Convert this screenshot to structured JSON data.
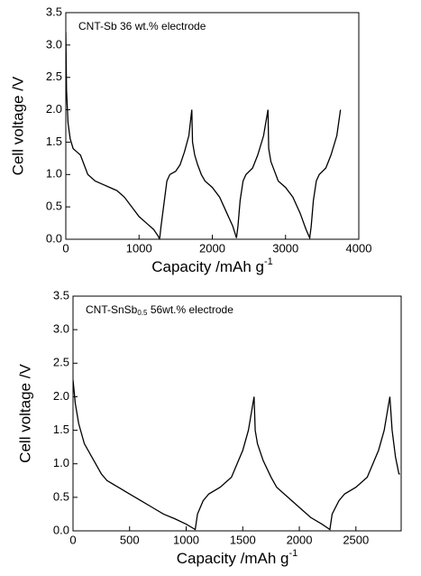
{
  "chart_data": [
    {
      "type": "line",
      "annotation": "CNT-Sb 36 wt.% electrode",
      "xlabel": [
        "Capacity /mAh g",
        "-1"
      ],
      "ylabel": "Cell voltage /V",
      "xlim": [
        0,
        4000
      ],
      "xticks": [
        0,
        1000,
        2000,
        3000,
        4000
      ],
      "ylim": [
        0,
        3.5
      ],
      "yticks": [
        {
          "value": 0,
          "label": "0.0"
        },
        0.5,
        {
          "value": 1,
          "label": "1.0"
        },
        1.5,
        {
          "value": 2,
          "label": "2.0"
        },
        2.5,
        {
          "value": 3,
          "label": "3.0"
        },
        3.5
      ],
      "color": "#000000",
      "x": [
        0,
        10,
        30,
        60,
        100,
        150,
        200,
        250,
        300,
        400,
        500,
        600,
        700,
        800,
        900,
        1000,
        1100,
        1200,
        1260,
        1280,
        1300,
        1340,
        1380,
        1420,
        1500,
        1560,
        1620,
        1680,
        1720,
        1730,
        1760,
        1800,
        1850,
        1900,
        2000,
        2100,
        2200,
        2280,
        2330,
        2350,
        2380,
        2420,
        2460,
        2550,
        2620,
        2700,
        2760,
        2770,
        2800,
        2850,
        2900,
        3000,
        3100,
        3200,
        3280,
        3330,
        3350,
        3380,
        3420,
        3460,
        3550,
        3620,
        3700,
        3750
      ],
      "values": [
        3.2,
        2.3,
        1.8,
        1.55,
        1.4,
        1.35,
        1.3,
        1.15,
        1.0,
        0.9,
        0.85,
        0.8,
        0.75,
        0.65,
        0.5,
        0.35,
        0.25,
        0.15,
        0.05,
        0.0,
        0.2,
        0.55,
        0.9,
        1.0,
        1.05,
        1.15,
        1.35,
        1.6,
        2.0,
        1.5,
        1.3,
        1.15,
        1.0,
        0.9,
        0.8,
        0.65,
        0.4,
        0.2,
        0.02,
        0.2,
        0.6,
        0.9,
        1.0,
        1.1,
        1.3,
        1.6,
        2.0,
        1.4,
        1.2,
        1.05,
        0.9,
        0.8,
        0.65,
        0.4,
        0.15,
        0.02,
        0.2,
        0.6,
        0.9,
        1.0,
        1.1,
        1.3,
        1.6,
        2.0
      ]
    },
    {
      "type": "line",
      "annotation": [
        "CNT-SnSb",
        "0.5",
        " 56wt.% electrode"
      ],
      "xlabel": [
        "Capacity /mAh g",
        "-1"
      ],
      "ylabel": "Cell voltage /V",
      "xlim": [
        0,
        2900
      ],
      "xticks": [
        0,
        500,
        1000,
        1500,
        2000,
        2500
      ],
      "ylim": [
        0,
        3.5
      ],
      "yticks": [
        {
          "value": 0,
          "label": "0.0"
        },
        0.5,
        {
          "value": 1,
          "label": "1.0"
        },
        1.5,
        {
          "value": 2,
          "label": "2.0"
        },
        2.5,
        {
          "value": 3,
          "label": "3.0"
        },
        3.5
      ],
      "color": "#000000",
      "x": [
        0,
        20,
        50,
        100,
        200,
        250,
        300,
        400,
        500,
        600,
        700,
        800,
        900,
        1000,
        1080,
        1100,
        1150,
        1200,
        1300,
        1400,
        1450,
        1500,
        1550,
        1600,
        1610,
        1630,
        1680,
        1750,
        1800,
        1900,
        2000,
        2100,
        2200,
        2270,
        2290,
        2350,
        2400,
        2500,
        2600,
        2650,
        2700,
        2750,
        2800,
        2820,
        2850,
        2880,
        2890
      ],
      "values": [
        2.25,
        1.9,
        1.6,
        1.3,
        1.0,
        0.85,
        0.75,
        0.65,
        0.55,
        0.45,
        0.35,
        0.25,
        0.18,
        0.1,
        0.02,
        0.25,
        0.45,
        0.55,
        0.65,
        0.8,
        1.0,
        1.2,
        1.5,
        2.0,
        1.5,
        1.3,
        1.05,
        0.8,
        0.65,
        0.5,
        0.35,
        0.2,
        0.1,
        0.02,
        0.25,
        0.45,
        0.55,
        0.65,
        0.8,
        1.0,
        1.2,
        1.5,
        2.0,
        1.5,
        1.1,
        0.85,
        0.85
      ]
    }
  ]
}
